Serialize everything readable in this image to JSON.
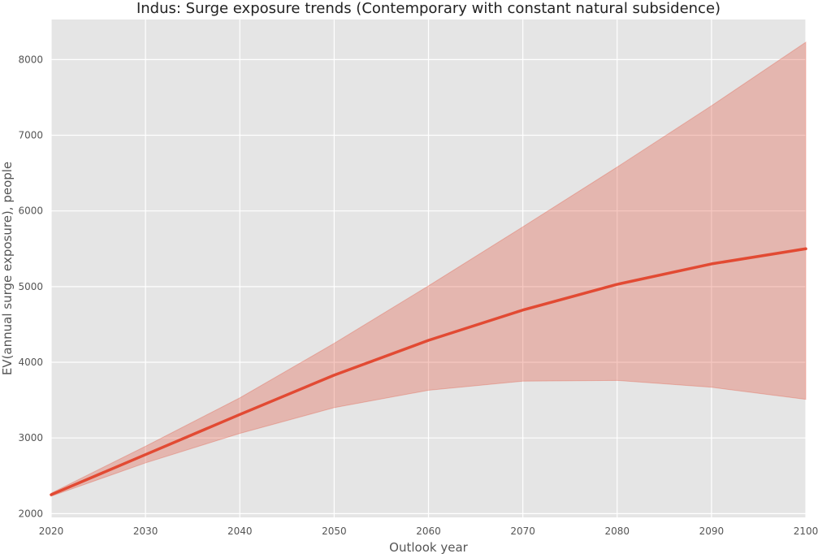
{
  "chart_data": {
    "type": "line",
    "title": "Indus: Surge exposure trends (Contemporary with constant natural subsidence)",
    "xlabel": "Outlook year",
    "ylabel": "EV(annual surge exposure), people",
    "xlim": [
      2020,
      2100
    ],
    "ylim": [
      1950,
      8530
    ],
    "x_ticks": [
      2020,
      2030,
      2040,
      2050,
      2060,
      2070,
      2080,
      2090,
      2100
    ],
    "y_ticks": [
      2000,
      3000,
      4000,
      5000,
      6000,
      7000,
      8000
    ],
    "grid": true,
    "legend": "none",
    "x": [
      2020,
      2030,
      2040,
      2050,
      2060,
      2070,
      2080,
      2090,
      2100
    ],
    "series": [
      {
        "values": [
          2250,
          2780,
          3310,
          3830,
          4290,
          4690,
          5030,
          5300,
          5500
        ],
        "lower": [
          2230,
          2670,
          3060,
          3400,
          3630,
          3750,
          3760,
          3670,
          3510
        ],
        "upper": [
          2270,
          2890,
          3530,
          4250,
          5010,
          5790,
          6580,
          7390,
          8230
        ],
        "color": "#e24a33",
        "band_color": "#e24a33"
      }
    ],
    "colors": {
      "plot_background": "#e5e5e5",
      "grid": "#ffffff"
    }
  }
}
